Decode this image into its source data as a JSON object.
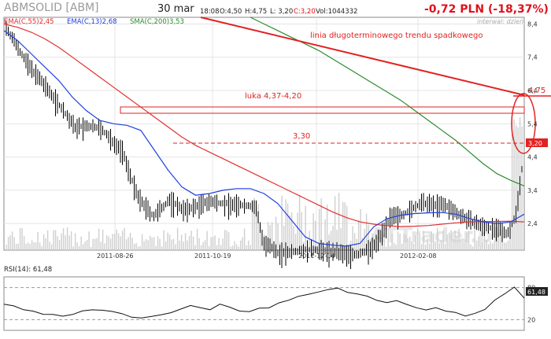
{
  "header": {
    "title": "ABMSOLID [ABM]",
    "date": "30 mar",
    "time": "18:08",
    "open": "O:4,50",
    "high": "H:4,75",
    "low": "L: 3,20",
    "close": "C:3,20",
    "volume": "Vol:1044332",
    "change": "-0,72 PLN (-18,37%)",
    "interval": "interwal: dzień"
  },
  "watermark": "ATTrader.pl",
  "colors": {
    "ema55": "#e23030",
    "ema13": "#2040e0",
    "sma200": "#2c8a2c",
    "annotation": "#e22222",
    "price_bars": "#000000",
    "volume": "#cfcfcf"
  },
  "chart_data": [
    {
      "type": "line",
      "subtype": "ohlc-price-chart",
      "x_tick_labels": [
        "2011-08-26",
        "2011-10-19",
        "2011-12-14",
        "2012-02-08"
      ],
      "y_ticks": [
        2.4,
        3.4,
        4.4,
        5.4,
        6.4,
        7.4,
        8.4
      ],
      "y_tick_labels": [
        "2,4",
        "3,4",
        "4,4",
        "5,4",
        "6,4",
        "7,4",
        "8,4"
      ],
      "ylim": [
        1.6,
        8.6
      ],
      "last_price_label": "3,20",
      "resistance_label": "4,75",
      "series": [
        {
          "name": "EMA(C,55)",
          "legend": "EMA(C,55)2,45",
          "last": 2.45,
          "values": [
            8.4,
            8.3,
            8.15,
            7.95,
            7.7,
            7.4,
            7.1,
            6.8,
            6.5,
            6.2,
            5.9,
            5.6,
            5.3,
            5.0,
            4.75,
            4.55,
            4.35,
            4.15,
            3.95,
            3.75,
            3.55,
            3.35,
            3.15,
            2.95,
            2.75,
            2.58,
            2.45,
            2.38,
            2.33,
            2.31,
            2.32,
            2.34,
            2.38,
            2.42,
            2.45,
            2.46,
            2.46,
            2.47,
            2.45
          ]
        },
        {
          "name": "EMA(C,13)",
          "legend": "EMA(C,13)2,68",
          "last": 2.68,
          "values": [
            8.2,
            7.9,
            7.5,
            7.1,
            6.7,
            6.2,
            5.8,
            5.5,
            5.4,
            5.35,
            5.2,
            4.6,
            4.0,
            3.5,
            3.25,
            3.3,
            3.4,
            3.45,
            3.45,
            3.3,
            3.0,
            2.5,
            2.0,
            1.8,
            1.75,
            1.72,
            1.8,
            2.3,
            2.55,
            2.65,
            2.7,
            2.72,
            2.73,
            2.68,
            2.55,
            2.45,
            2.4,
            2.45,
            2.68
          ]
        },
        {
          "name": "SMA(C,200)",
          "legend": "SMA(C,200)3,53",
          "last": 3.53,
          "values": [
            null,
            null,
            null,
            null,
            null,
            null,
            null,
            null,
            null,
            null,
            null,
            null,
            null,
            null,
            null,
            null,
            null,
            null,
            8.6,
            8.4,
            8.2,
            8.0,
            7.8,
            7.6,
            7.35,
            7.1,
            6.85,
            6.6,
            6.35,
            6.1,
            5.8,
            5.5,
            5.2,
            4.9,
            4.55,
            4.2,
            3.9,
            3.7,
            3.53
          ]
        }
      ],
      "annotations": [
        {
          "text": "linia długoterminowego trendu spadkowego",
          "type": "trend-line"
        },
        {
          "text": "luka 4,37-4,20",
          "type": "gap-box",
          "y_range": [
            4.2,
            4.37
          ]
        },
        {
          "text": "3,30",
          "type": "support-dashed",
          "y": 3.3
        }
      ]
    },
    {
      "type": "line",
      "subtype": "rsi",
      "legend": "RSI(14): 61,48",
      "last_label": "61,48",
      "y_ticks": [
        20,
        80
      ],
      "y_tick_labels": [
        "20",
        "80"
      ],
      "ylim": [
        0,
        100
      ],
      "values": [
        50,
        45,
        40,
        35,
        30,
        28,
        25,
        30,
        38,
        40,
        36,
        34,
        30,
        25,
        22,
        26,
        30,
        34,
        40,
        45,
        42,
        40,
        48,
        44,
        38,
        36,
        40,
        42,
        50,
        56,
        62,
        66,
        70,
        75,
        78,
        72,
        68,
        62,
        58,
        52,
        54,
        48,
        44,
        40,
        42,
        35,
        33,
        28,
        30,
        40,
        55,
        70,
        82,
        61.48
      ]
    }
  ]
}
